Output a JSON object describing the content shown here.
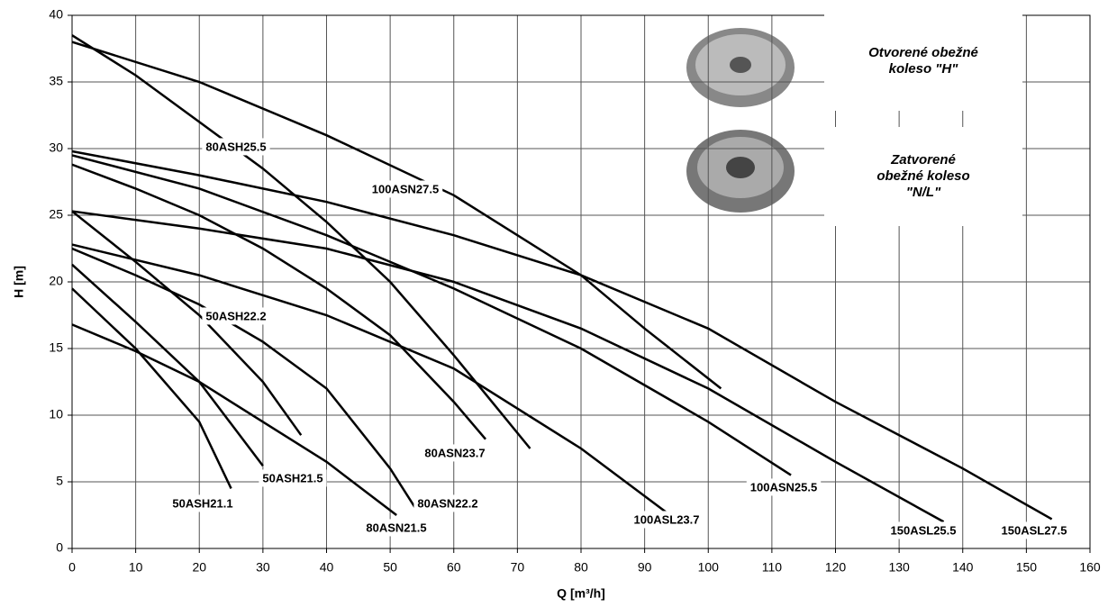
{
  "chart_data": {
    "type": "line",
    "xlabel": "Q [m³/h]",
    "ylabel": "H [m]",
    "xlim": [
      0,
      160
    ],
    "xticks": [
      0,
      10,
      20,
      30,
      40,
      50,
      60,
      70,
      80,
      90,
      100,
      110,
      120,
      130,
      140,
      150,
      160
    ],
    "ylim": [
      0,
      40
    ],
    "yticks": [
      0,
      5,
      10,
      15,
      20,
      25,
      30,
      35,
      40
    ],
    "grid": true,
    "annotations": [
      [
        "Otvorené obežné",
        "koleso \"H\""
      ],
      [
        "Zatvorené",
        "obežné koleso",
        "\"N/L\""
      ]
    ],
    "series": [
      {
        "name": "80ASH25.5",
        "color": "#000000",
        "x": [
          0,
          10,
          20,
          30,
          40,
          50,
          60,
          66,
          72
        ],
        "values": [
          38.5,
          35.5,
          32,
          28.5,
          24.5,
          20,
          14.5,
          11,
          7.5
        ]
      },
      {
        "name": "100ASN27.5",
        "color": "#000000",
        "x": [
          0,
          20,
          40,
          60,
          80,
          90,
          102
        ],
        "values": [
          38,
          35,
          31,
          26.5,
          20.5,
          16.5,
          12
        ]
      },
      {
        "name": "150ASL27.5",
        "color": "#000000",
        "x": [
          0,
          20,
          40,
          60,
          80,
          100,
          120,
          140,
          154
        ],
        "values": [
          29.8,
          28,
          26,
          23.5,
          20.5,
          16.5,
          11,
          6,
          2.2
        ]
      },
      {
        "name": "150ASL25.5",
        "color": "#000000",
        "x": [
          0,
          20,
          40,
          60,
          80,
          100,
          120,
          137
        ],
        "values": [
          25.3,
          24,
          22.5,
          20,
          16.5,
          12,
          6.5,
          2
        ]
      },
      {
        "name": "100ASN25.5",
        "color": "#000000",
        "x": [
          0,
          20,
          40,
          60,
          80,
          100,
          113
        ],
        "values": [
          29.5,
          27,
          23.5,
          19.5,
          15,
          9.5,
          5.5
        ]
      },
      {
        "name": "80ASN23.7",
        "color": "#000000",
        "x": [
          0,
          10,
          20,
          30,
          40,
          50,
          60,
          65
        ],
        "values": [
          28.8,
          27,
          25,
          22.5,
          19.5,
          16,
          11,
          8.2
        ]
      },
      {
        "name": "100ASL23.7",
        "color": "#000000",
        "x": [
          0,
          20,
          40,
          60,
          80,
          94
        ],
        "values": [
          22.8,
          20.5,
          17.5,
          13.5,
          7.5,
          2.5
        ]
      },
      {
        "name": "80ASN22.2",
        "color": "#000000",
        "x": [
          0,
          10,
          20,
          30,
          40,
          50,
          54
        ],
        "values": [
          22.5,
          20.5,
          18.3,
          15.5,
          12,
          6,
          3
        ]
      },
      {
        "name": "80ASN21.5",
        "color": "#000000",
        "x": [
          0,
          10,
          20,
          30,
          40,
          51
        ],
        "values": [
          16.8,
          14.8,
          12.5,
          9.5,
          6.5,
          2.5
        ]
      },
      {
        "name": "50ASH22.2",
        "color": "#000000",
        "x": [
          0,
          10,
          20,
          30,
          36
        ],
        "values": [
          25.3,
          21.5,
          17.5,
          12.5,
          8.5
        ]
      },
      {
        "name": "50ASH21.5",
        "color": "#000000",
        "x": [
          0,
          10,
          20,
          30
        ],
        "values": [
          21.3,
          17,
          12.5,
          6.2
        ]
      },
      {
        "name": "50ASH21.1",
        "color": "#000000",
        "x": [
          0,
          10,
          20,
          25
        ],
        "values": [
          19.5,
          15,
          9.5,
          4.5
        ]
      }
    ]
  }
}
